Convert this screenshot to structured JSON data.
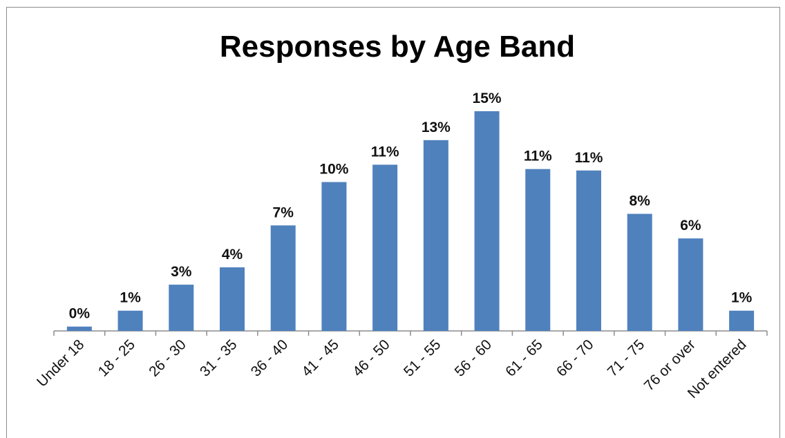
{
  "chart_data": {
    "type": "bar",
    "title": "Responses by Age Band",
    "xlabel": "",
    "ylabel": "",
    "categories": [
      "Under 18",
      "18 - 25",
      "26 - 30",
      "31 - 35",
      "36 - 40",
      "41 - 45",
      "46 - 50",
      "51 - 55",
      "56 - 60",
      "61 - 65",
      "66 - 70",
      "71 - 75",
      "76 or over",
      "Not entered"
    ],
    "values": [
      0.3,
      1.4,
      3.2,
      4.4,
      7.3,
      10.3,
      11.5,
      13.2,
      15.2,
      11.2,
      11.1,
      8.1,
      6.4,
      1.4
    ],
    "data_labels": [
      "0%",
      "1%",
      "3%",
      "4%",
      "7%",
      "10%",
      "11%",
      "13%",
      "15%",
      "11%",
      "11%",
      "8%",
      "6%",
      "1%"
    ],
    "ylim": [
      0,
      16
    ],
    "grid": false,
    "legend": "none",
    "bar_color": "#4f81bd"
  }
}
